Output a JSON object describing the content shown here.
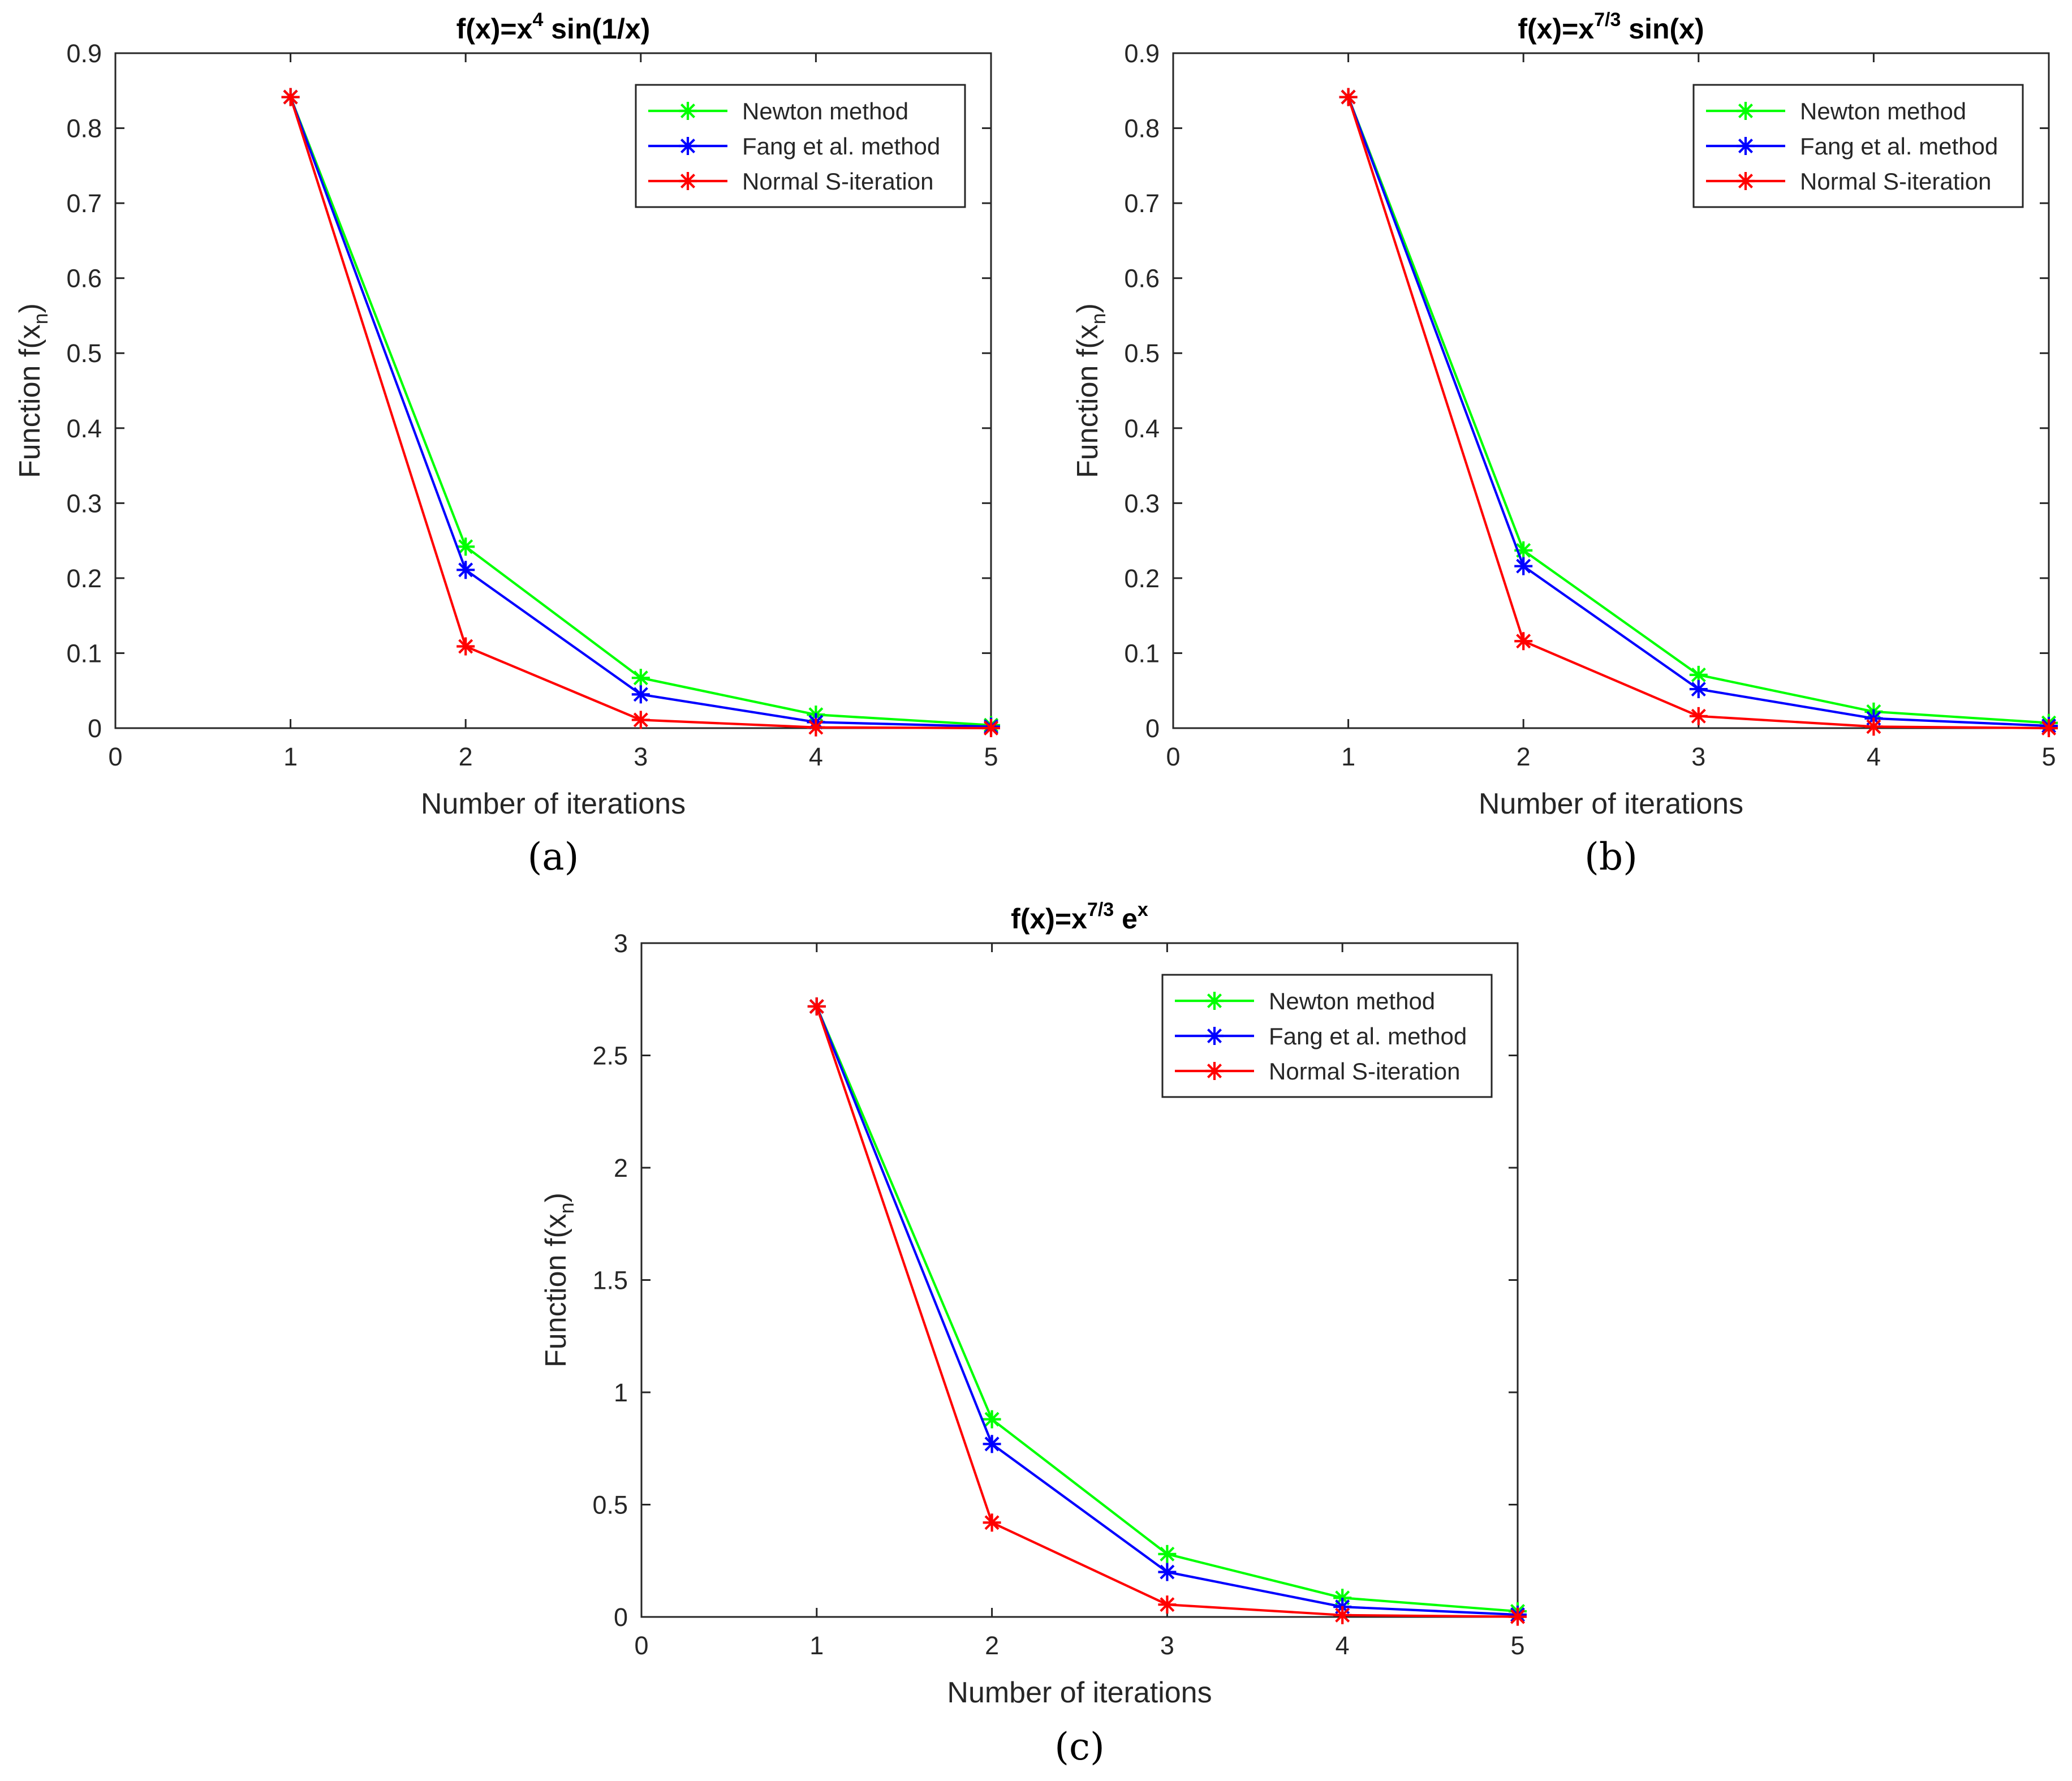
{
  "chart_data": [
    {
      "type": "line",
      "id": "a",
      "caption": "(a)",
      "title": {
        "prefix": "f(x)=x",
        "sup": "4",
        "suffix": " sin(1/x)"
      },
      "xlabel": "Number of iterations",
      "ylabel": {
        "prefix": "Function f(x",
        "sub": "n",
        "suffix": ")"
      },
      "xlim": [
        0,
        5
      ],
      "ylim": [
        0,
        0.9
      ],
      "xticks": [
        0,
        1,
        2,
        3,
        4,
        5
      ],
      "yticks": [
        0,
        0.1,
        0.2,
        0.3,
        0.4,
        0.5,
        0.6,
        0.7,
        0.8,
        0.9
      ],
      "grid": false,
      "legend_position": "top-right",
      "x": [
        1,
        2,
        3,
        4,
        5
      ],
      "series": [
        {
          "name": "Newton method",
          "color": "#00ff00",
          "values": [
            0.8415,
            0.242,
            0.067,
            0.018,
            0.004
          ]
        },
        {
          "name": "Fang et al. method",
          "color": "#0000ff",
          "values": [
            0.8415,
            0.211,
            0.045,
            0.008,
            0.002
          ]
        },
        {
          "name": "Normal S-iteration",
          "color": "#ff0000",
          "values": [
            0.8415,
            0.109,
            0.011,
            0.001,
            0.0
          ]
        }
      ]
    },
    {
      "type": "line",
      "id": "b",
      "caption": "(b)",
      "title": {
        "prefix": "f(x)=x",
        "sup": "7/3",
        "suffix": " sin(x)"
      },
      "xlabel": "Number of iterations",
      "ylabel": {
        "prefix": "Function f(x",
        "sub": "n",
        "suffix": ")"
      },
      "xlim": [
        0,
        5
      ],
      "ylim": [
        0,
        0.9
      ],
      "xticks": [
        0,
        1,
        2,
        3,
        4,
        5
      ],
      "yticks": [
        0,
        0.1,
        0.2,
        0.3,
        0.4,
        0.5,
        0.6,
        0.7,
        0.8,
        0.9
      ],
      "grid": false,
      "legend_position": "top-right",
      "x": [
        1,
        2,
        3,
        4,
        5
      ],
      "series": [
        {
          "name": "Newton method",
          "color": "#00ff00",
          "values": [
            0.8415,
            0.237,
            0.071,
            0.022,
            0.007
          ]
        },
        {
          "name": "Fang et al. method",
          "color": "#0000ff",
          "values": [
            0.8415,
            0.216,
            0.052,
            0.013,
            0.003
          ]
        },
        {
          "name": "Normal S-iteration",
          "color": "#ff0000",
          "values": [
            0.8415,
            0.116,
            0.016,
            0.002,
            0.0
          ]
        }
      ]
    },
    {
      "type": "line",
      "id": "c",
      "caption": "(c)",
      "title": {
        "prefix": "f(x)=x",
        "sup": "7/3",
        "suffix": " e",
        "sup2": "x"
      },
      "xlabel": "Number of iterations",
      "ylabel": {
        "prefix": "Function f(x",
        "sub": "n",
        "suffix": ")"
      },
      "xlim": [
        0,
        5
      ],
      "ylim": [
        0,
        3
      ],
      "xticks": [
        0,
        1,
        2,
        3,
        4,
        5
      ],
      "yticks": [
        0,
        0.5,
        1,
        1.5,
        2,
        2.5,
        3
      ],
      "grid": false,
      "legend_position": "top-right",
      "x": [
        1,
        2,
        3,
        4,
        5
      ],
      "series": [
        {
          "name": "Newton method",
          "color": "#00ff00",
          "values": [
            2.718,
            0.88,
            0.28,
            0.085,
            0.025
          ]
        },
        {
          "name": "Fang et al. method",
          "color": "#0000ff",
          "values": [
            2.718,
            0.77,
            0.2,
            0.045,
            0.01
          ]
        },
        {
          "name": "Normal S-iteration",
          "color": "#ff0000",
          "values": [
            2.718,
            0.42,
            0.055,
            0.008,
            0.001
          ]
        }
      ]
    }
  ]
}
